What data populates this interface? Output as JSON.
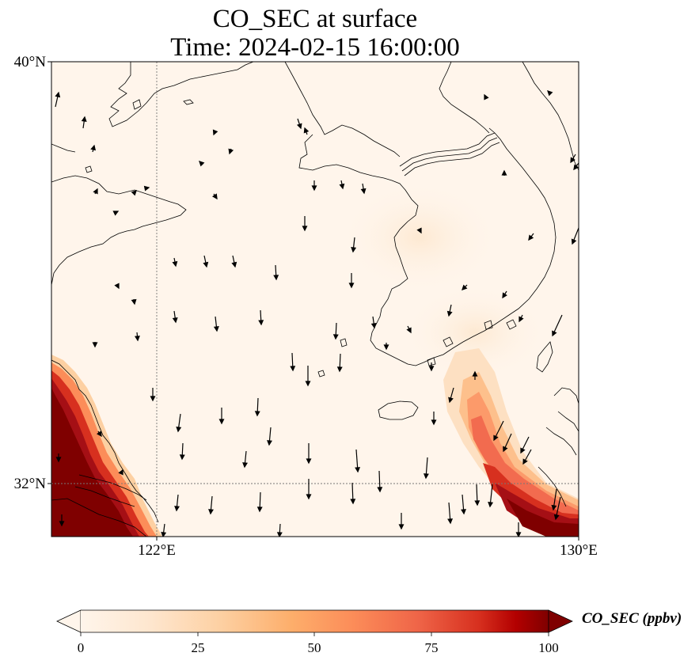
{
  "title": {
    "line1": "CO_SEC at surface",
    "line2": "Time: 2024-02-15 16:00:00"
  },
  "map": {
    "extent": {
      "lon_min": 119.6,
      "lon_max": 130.0,
      "lat_min": 31.0,
      "lat_max": 40.0
    },
    "lat_labels": [
      "40°N",
      "32°N"
    ],
    "lon_labels": [
      "122°E",
      "130°E"
    ],
    "gridlines": {
      "lon": 122,
      "lat": 32
    },
    "background_color": "#fff5eb",
    "land_color": "#fff5eb",
    "coastline_color": "#000000"
  },
  "colorbar": {
    "label": "CO_SEC (ppbv)",
    "ticks": [
      "0",
      "25",
      "50",
      "75",
      "100"
    ],
    "min": 0,
    "max": 100,
    "extend": "both",
    "colors": [
      "#fff5eb",
      "#fee6ce",
      "#fdd0a2",
      "#fdae6b",
      "#fd8d3c",
      "#f16913",
      "#d94801",
      "#a50f15",
      "#7f0000"
    ]
  },
  "plumes": {
    "units": "ppbv",
    "shanghai_coast_max": 100,
    "korea_strait_max": 100
  }
}
